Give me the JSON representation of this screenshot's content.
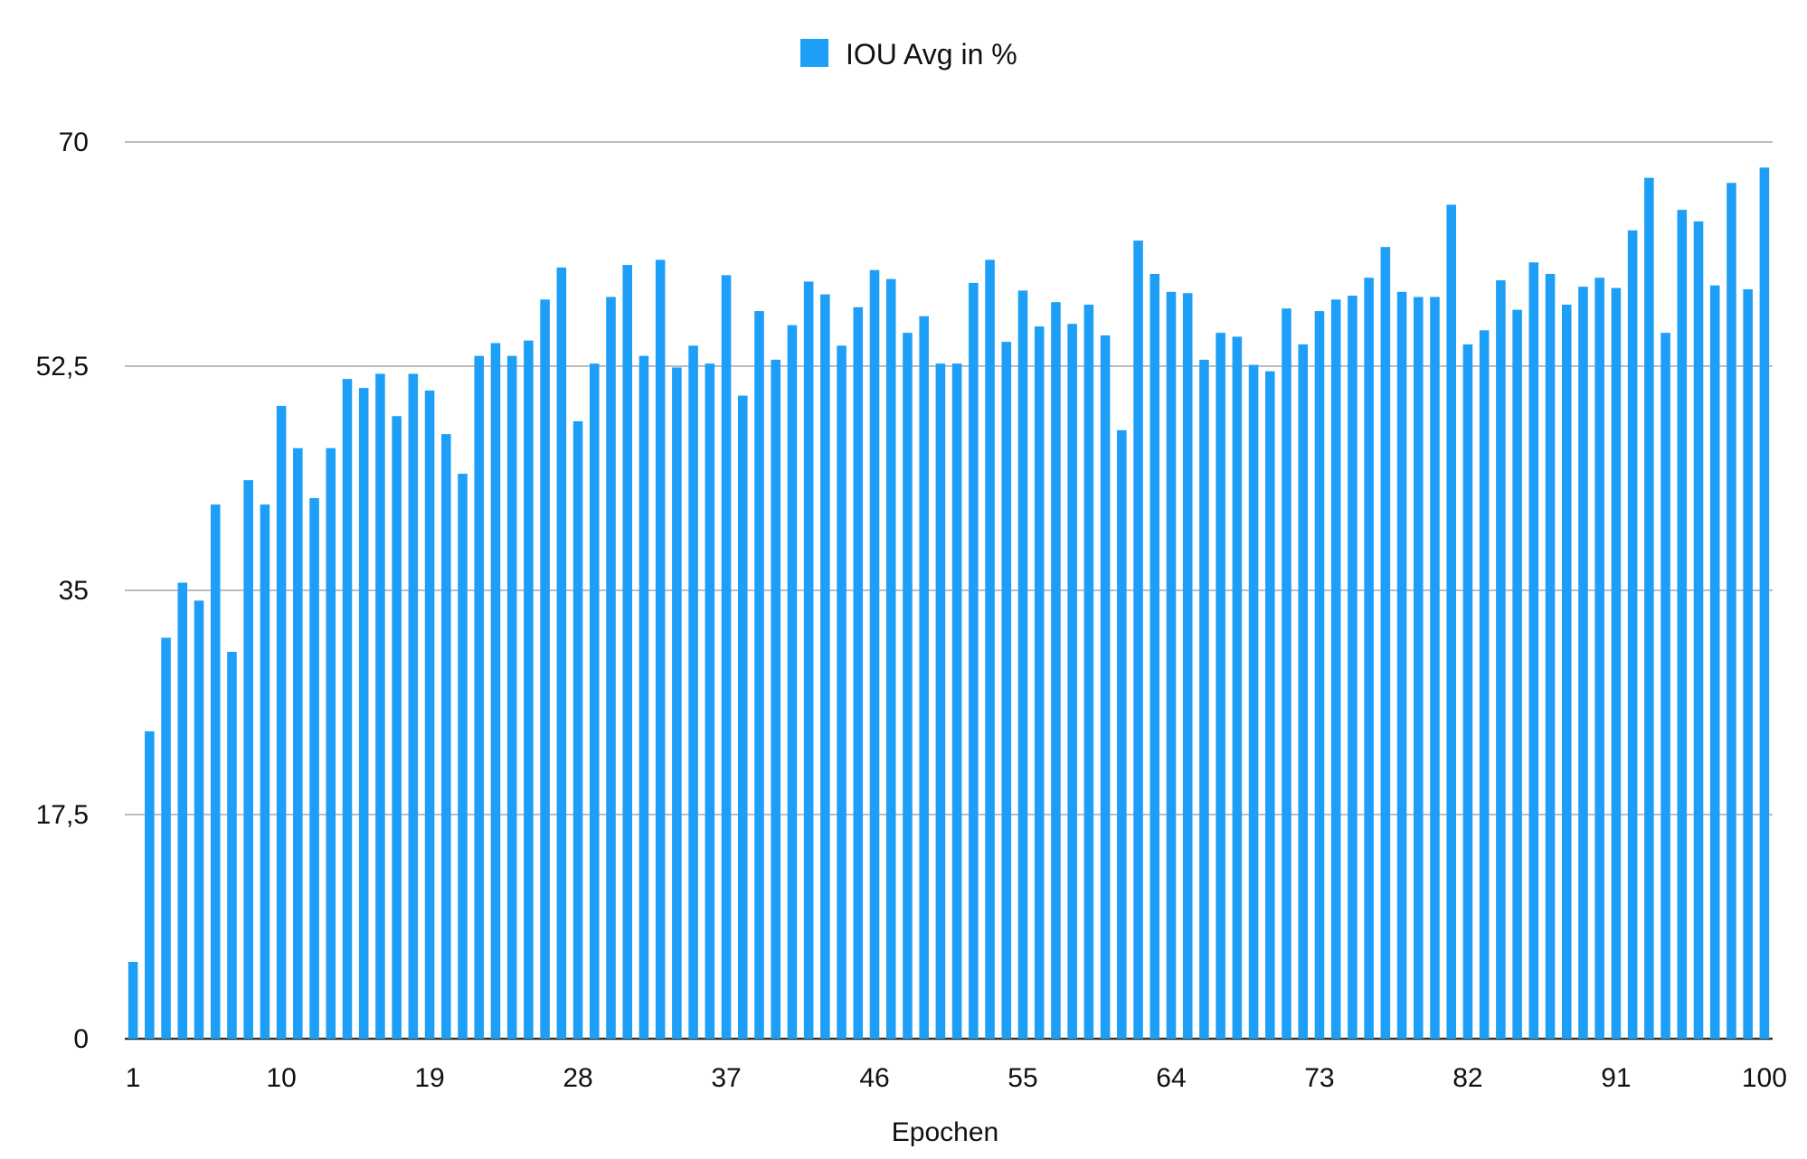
{
  "chart_data": {
    "type": "bar",
    "title": "",
    "xlabel": "Epochen",
    "ylabel": "",
    "ylim": [
      0,
      70
    ],
    "y_ticks": [
      {
        "value": 0,
        "label": "0"
      },
      {
        "value": 17.5,
        "label": "17,5"
      },
      {
        "value": 35,
        "label": "35"
      },
      {
        "value": 52.5,
        "label": "52,5"
      },
      {
        "value": 70,
        "label": "70"
      }
    ],
    "x_tick_labels": [
      "1",
      "10",
      "19",
      "28",
      "37",
      "46",
      "55",
      "64",
      "73",
      "82",
      "91",
      "100"
    ],
    "grid": "horizontal",
    "legend_position": "top-center",
    "bar_color": "#1E9FF7",
    "series": [
      {
        "name": "IOU Avg in %",
        "values": [
          6,
          24,
          31.3,
          35.6,
          34.2,
          41.7,
          30.2,
          43.6,
          41.7,
          49.4,
          46.1,
          42.2,
          46.1,
          51.5,
          50.8,
          51.9,
          48.6,
          51.9,
          50.6,
          47.2,
          44.1,
          53.3,
          54.3,
          53.3,
          54.5,
          57.7,
          60.2,
          48.2,
          52.7,
          57.9,
          60.4,
          53.3,
          60.8,
          52.4,
          54.1,
          52.7,
          59.6,
          50.2,
          56.8,
          53,
          55.7,
          59.1,
          58.1,
          54.1,
          57.1,
          60,
          59.3,
          55.1,
          56.4,
          52.7,
          52.7,
          59,
          60.8,
          54.4,
          58.4,
          55.6,
          57.5,
          55.8,
          57.3,
          54.9,
          47.5,
          62.3,
          59.7,
          58.3,
          58.2,
          53,
          55.1,
          54.8,
          52.6,
          52.1,
          57,
          54.2,
          56.8,
          57.7,
          58,
          59.4,
          61.8,
          58.3,
          57.9,
          57.9,
          65.1,
          54.2,
          55.3,
          59.2,
          56.9,
          60.6,
          59.7,
          57.3,
          58.7,
          59.4,
          58.6,
          63.1,
          67.2,
          55.1,
          64.7,
          63.8,
          58.8,
          66.8,
          58.5,
          68
        ]
      }
    ]
  }
}
